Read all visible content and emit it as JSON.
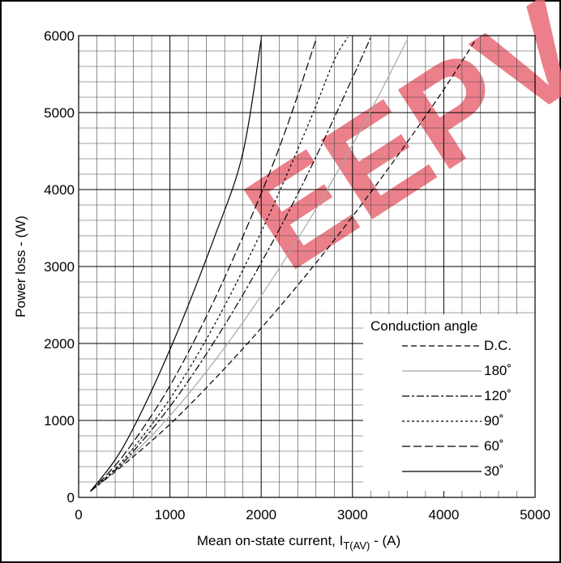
{
  "chart_data": {
    "type": "line",
    "title": "",
    "xlabel": "Mean on-state current, I",
    "xlabel_sub": "T(AV)",
    "xlabel_suffix": " - (A)",
    "ylabel": "Power loss - (W)",
    "xlim": [
      0,
      5000
    ],
    "ylim": [
      0,
      6000
    ],
    "xticks": [
      0,
      1000,
      2000,
      3000,
      4000,
      5000
    ],
    "yticks": [
      0,
      1000,
      2000,
      3000,
      4000,
      5000,
      6000
    ],
    "grid": true,
    "legend_title": "Conduction angle",
    "legend_position": "bottom-right",
    "series": [
      {
        "name": "D.C.",
        "color": "#000000",
        "dash": "7,4",
        "x": [
          130,
          500,
          1000,
          1500,
          2000,
          2500,
          3000,
          3500,
          4000,
          4350
        ],
        "y": [
          80,
          430,
          950,
          1550,
          2200,
          2900,
          3650,
          4450,
          5300,
          5950
        ]
      },
      {
        "name": "180˚",
        "color": "#a8a8a8",
        "dash": "",
        "x": [
          130,
          500,
          1000,
          1500,
          2000,
          2500,
          3000,
          3300,
          3600
        ],
        "y": [
          80,
          450,
          1060,
          1790,
          2620,
          3550,
          4580,
          5250,
          5950
        ]
      },
      {
        "name": "120˚",
        "color": "#000000",
        "dash": "9,3,3,3",
        "x": [
          130,
          500,
          1000,
          1500,
          2000,
          2500,
          3000,
          3200
        ],
        "y": [
          80,
          470,
          1180,
          2050,
          3050,
          4180,
          5450,
          5980
        ]
      },
      {
        "name": "90˚",
        "color": "#000000",
        "dash": "3,3",
        "x": [
          130,
          500,
          1000,
          1500,
          2000,
          2500,
          2800,
          2950
        ],
        "y": [
          80,
          500,
          1280,
          2270,
          3450,
          4800,
          5680,
          5980
        ]
      },
      {
        "name": "60˚",
        "color": "#000000",
        "dash": "10,4",
        "x": [
          130,
          500,
          1000,
          1500,
          2000,
          2300,
          2600
        ],
        "y": [
          80,
          560,
          1450,
          2600,
          3950,
          4880,
          5950
        ]
      },
      {
        "name": "30˚",
        "color": "#000000",
        "dash": "",
        "x": [
          130,
          500,
          1000,
          1500,
          1800,
          2000
        ],
        "y": [
          80,
          680,
          1920,
          3420,
          4480,
          5950
        ]
      }
    ]
  },
  "watermark": {
    "text": "EEPV",
    "color": "#e96b76"
  }
}
